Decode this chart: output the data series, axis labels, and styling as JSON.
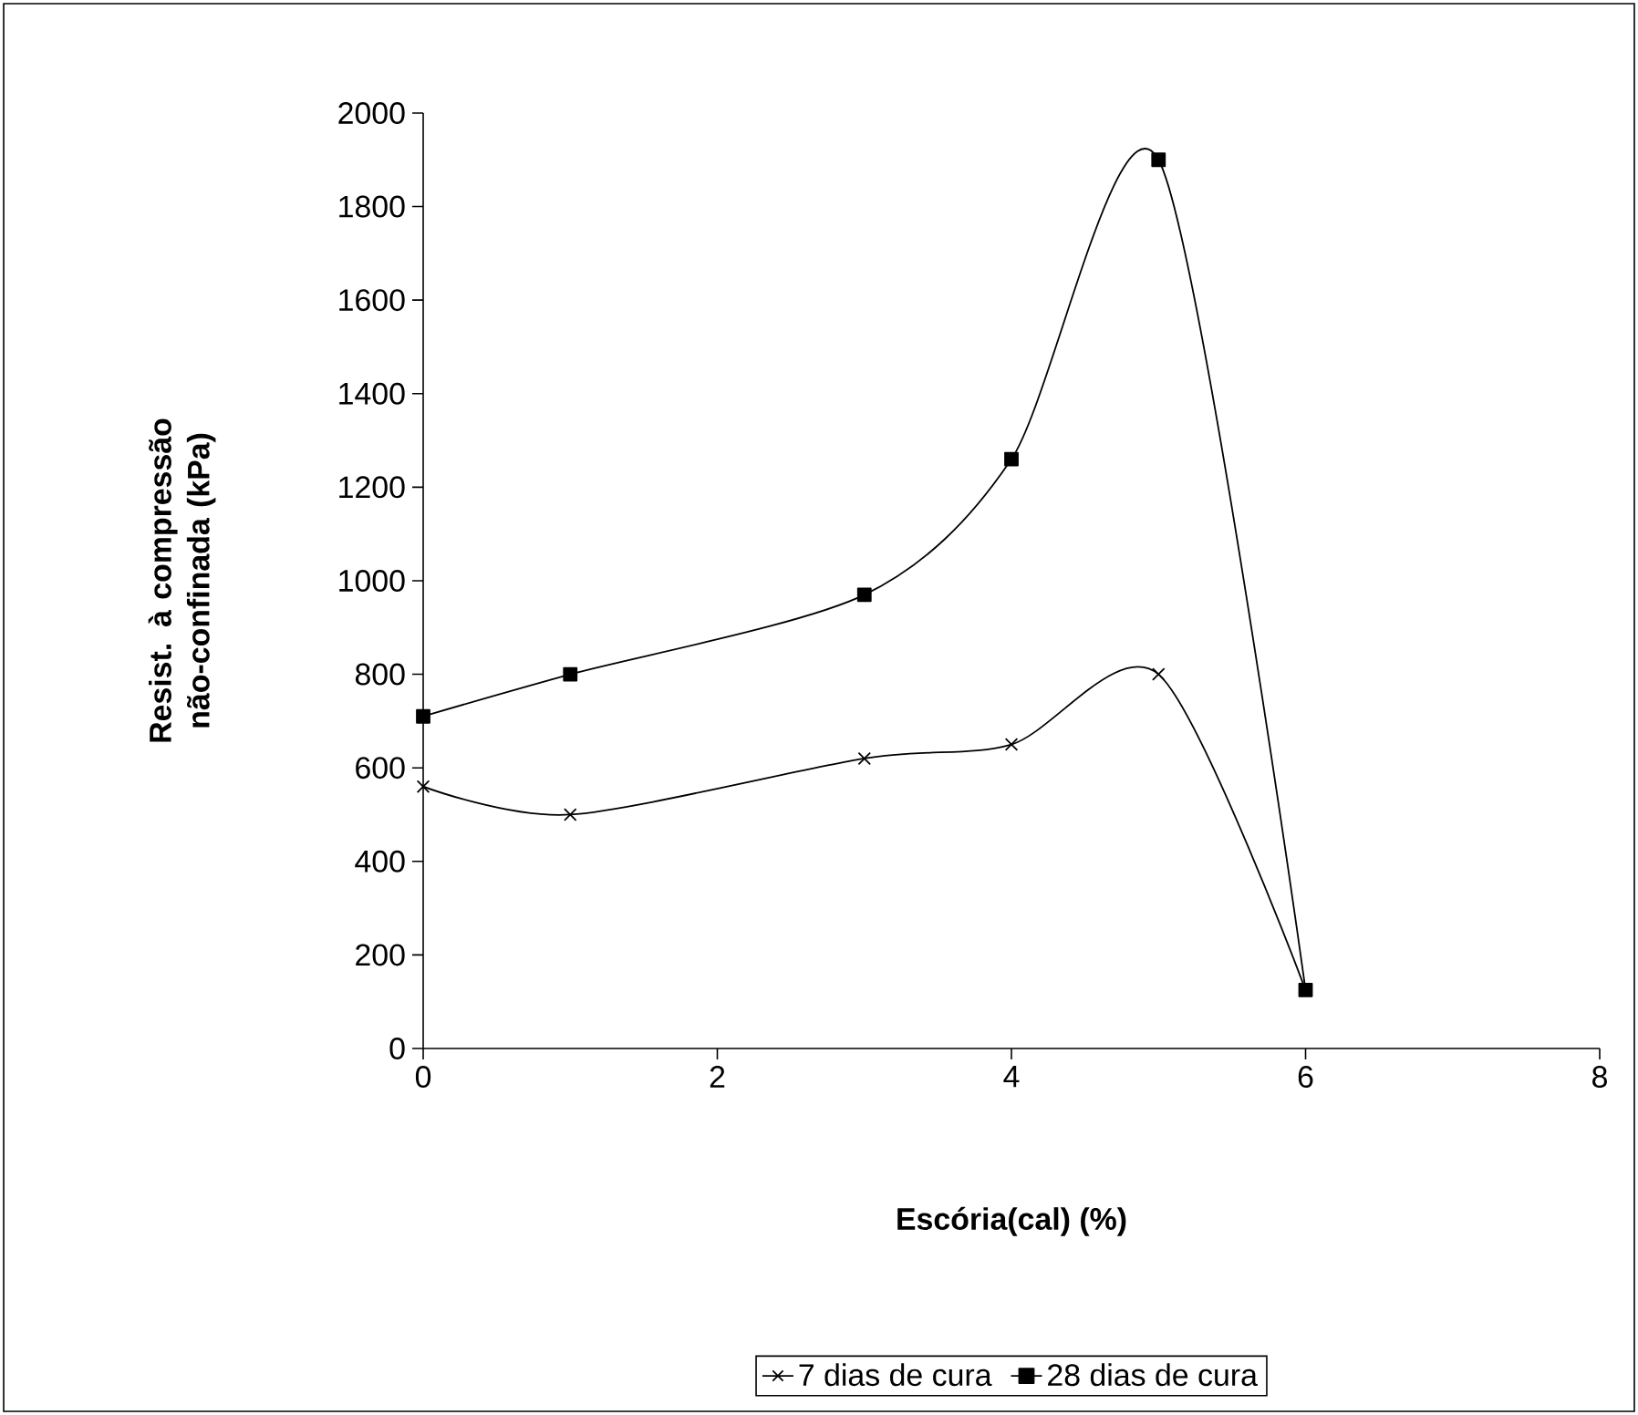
{
  "chart_data": {
    "type": "line",
    "xlabel": "Escória(cal) (%)",
    "ylabel": "Resist. à compressão não-confinada (kPa)",
    "xlim": [
      0,
      8
    ],
    "ylim": [
      0,
      2000
    ],
    "xticks": [
      0,
      2,
      4,
      6,
      8
    ],
    "yticks": [
      0,
      200,
      400,
      600,
      800,
      1000,
      1200,
      1400,
      1600,
      1800,
      2000
    ],
    "legend": "bottom",
    "line_style": "solid",
    "series": [
      {
        "name": "7 dias de cura",
        "color": "#000000",
        "marker": "cross",
        "x": [
          0,
          1,
          3,
          4,
          5,
          6
        ],
        "values": [
          560,
          500,
          620,
          650,
          800,
          125
        ]
      },
      {
        "name": "28 dias de cura",
        "color": "#000000",
        "marker": "square",
        "x": [
          0,
          1,
          3,
          4,
          5,
          6
        ],
        "values": [
          710,
          800,
          970,
          1260,
          1900,
          125
        ]
      }
    ]
  }
}
